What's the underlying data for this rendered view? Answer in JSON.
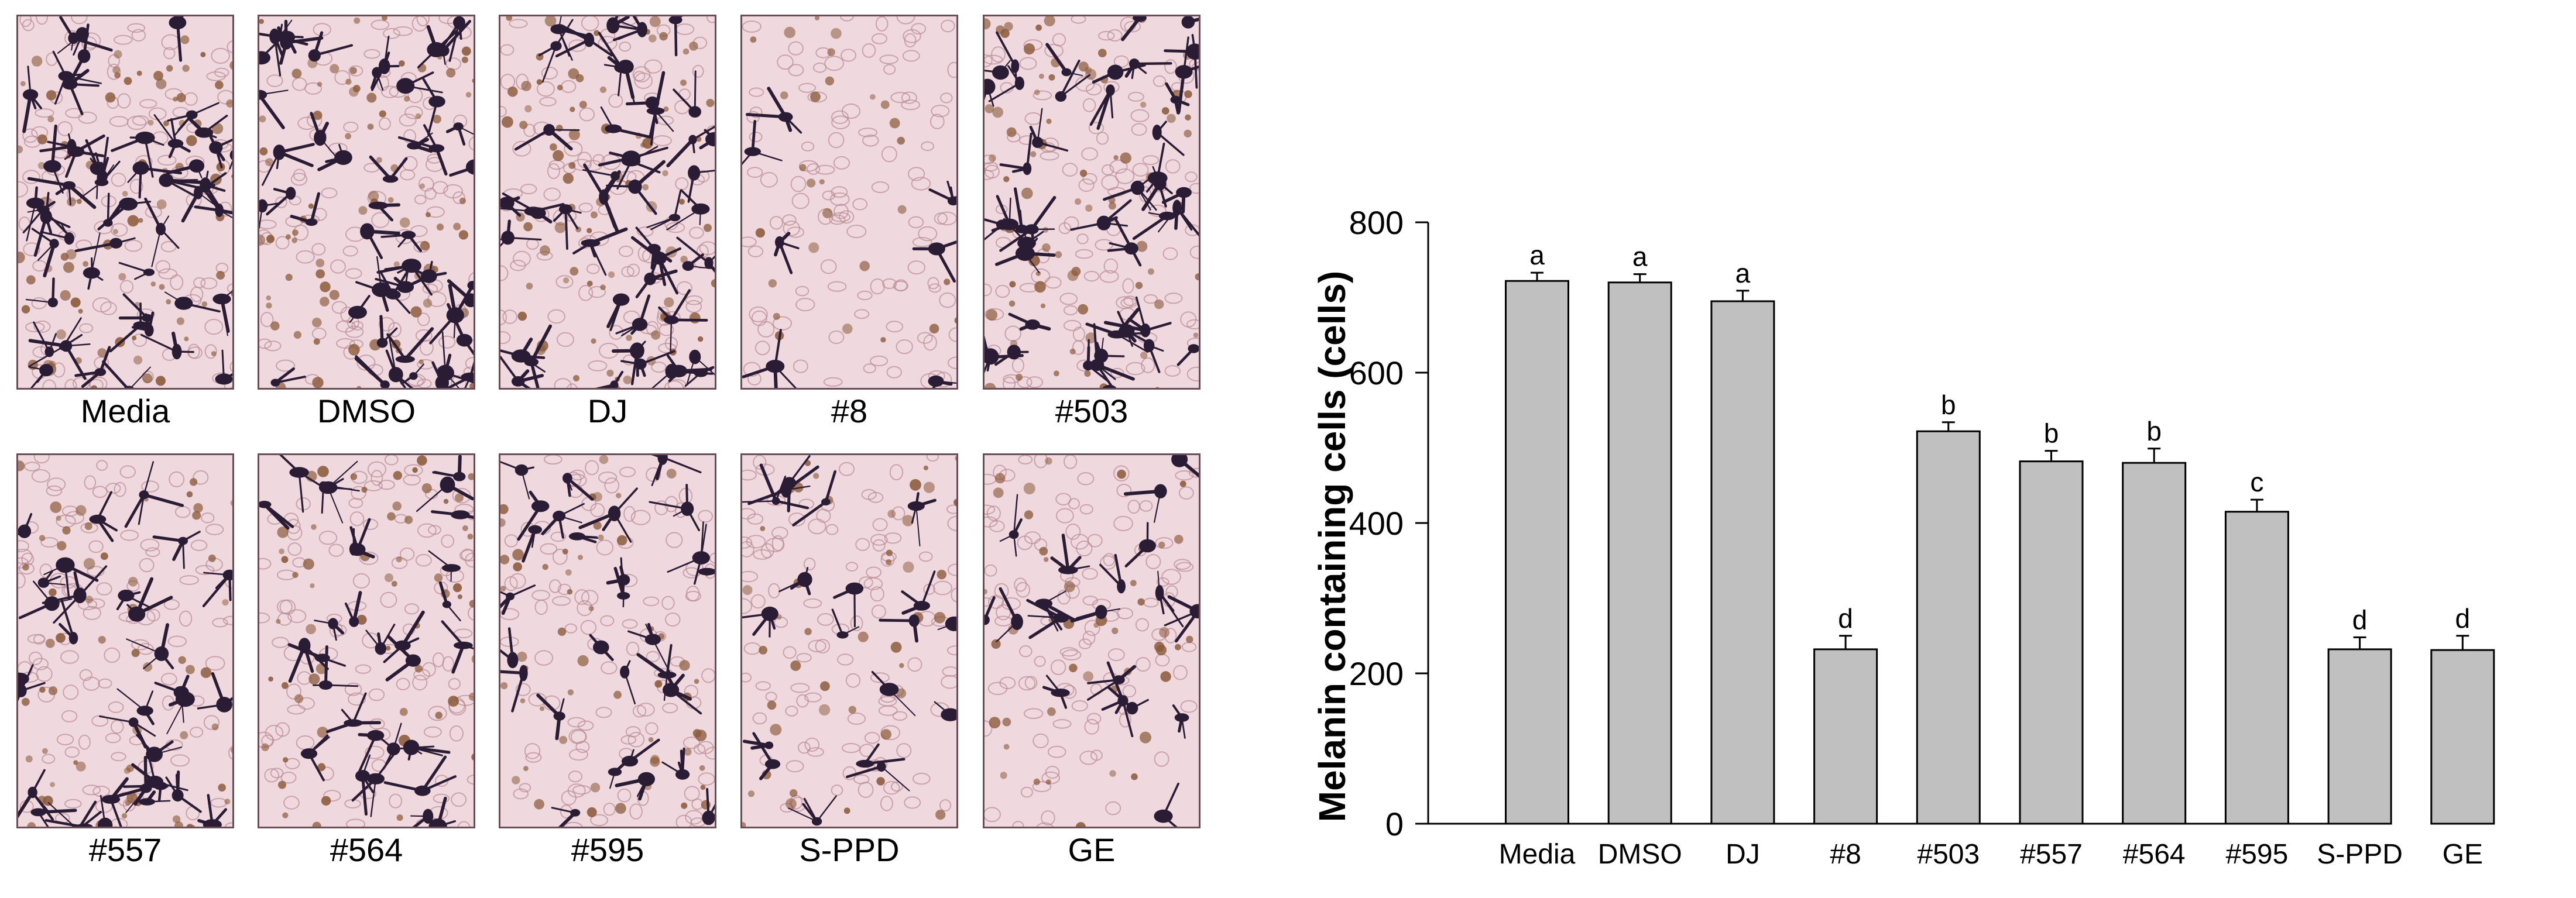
{
  "micrograph_panels": [
    {
      "label": "Media",
      "density": 0.95
    },
    {
      "label": "DMSO",
      "density": 0.85
    },
    {
      "label": "DJ",
      "density": 0.85
    },
    {
      "label": "#8",
      "density": 0.12
    },
    {
      "label": "#503",
      "density": 0.8
    },
    {
      "label": "#557",
      "density": 0.6
    },
    {
      "label": "#564",
      "density": 0.55
    },
    {
      "label": "#595",
      "density": 0.5
    },
    {
      "label": "S-PPD",
      "density": 0.35
    },
    {
      "label": "GE",
      "density": 0.35
    }
  ],
  "colors": {
    "bar_fill": "#c0c0c0",
    "bar_stroke": "#000000",
    "tissue_bg": "#efd9df",
    "cell_dark": "#2a1c34",
    "cell_brown": "#8a5a3a",
    "cell_outline": "#b98a94"
  },
  "chart_data": {
    "type": "bar",
    "ylabel": "Melanin containing cells (cells)",
    "xlabel": "",
    "ylim": [
      0,
      800
    ],
    "yticks": [
      0,
      200,
      400,
      600,
      800
    ],
    "categories": [
      "Media",
      "DMSO",
      "DJ",
      "#8",
      "#503",
      "#557",
      "#564",
      "#595",
      "S-PPD",
      "GE"
    ],
    "values": [
      722,
      720,
      695,
      232,
      522,
      482,
      480,
      415,
      232,
      231
    ],
    "errors": [
      11,
      11,
      14,
      18,
      12,
      14,
      19,
      16,
      16,
      19
    ],
    "significance_letters": [
      "a",
      "a",
      "a",
      "d",
      "b",
      "b",
      "b",
      "c",
      "d",
      "d"
    ]
  }
}
